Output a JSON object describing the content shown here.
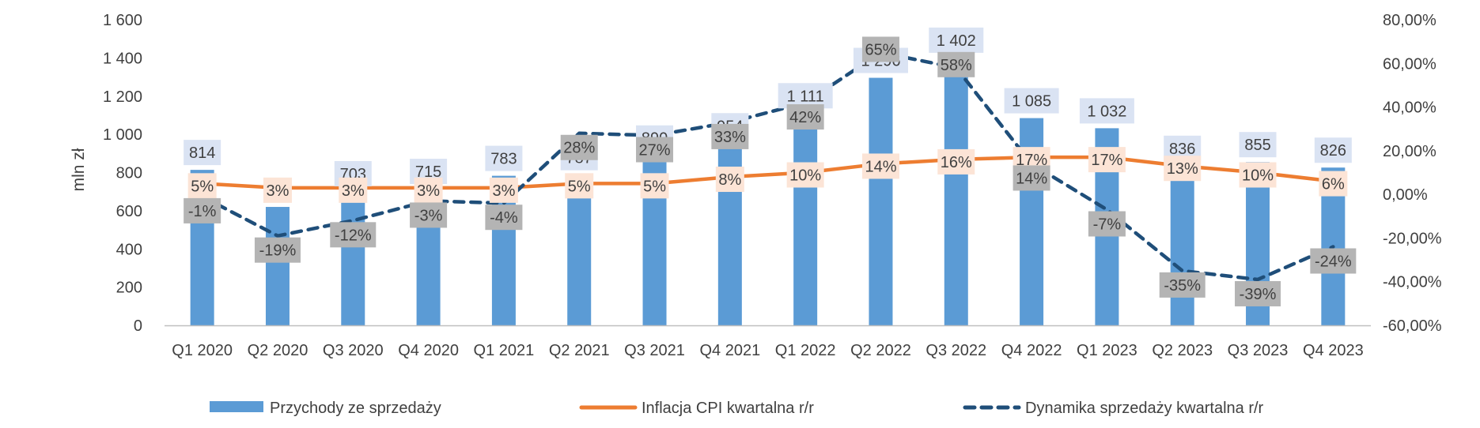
{
  "chart_data": {
    "type": "bar",
    "ylabel": "mln zł",
    "ylim": [
      0,
      1600
    ],
    "yticks": [
      "0",
      "200",
      "400",
      "600",
      "800",
      "1 000",
      "1 200",
      "1 400",
      "1 600"
    ],
    "y2lim": [
      -0.6,
      0.8
    ],
    "y2ticks": [
      "-60,00%",
      "-40,00%",
      "-20,00%",
      "0,00%",
      "20,00%",
      "40,00%",
      "60,00%",
      "80,00%"
    ],
    "legend_position": "bottom",
    "grid": false,
    "categories": [
      "Q1 2020",
      "Q2 2020",
      "Q3 2020",
      "Q4 2020",
      "Q1 2021",
      "Q2 2021",
      "Q3 2021",
      "Q4 2021",
      "Q1 2022",
      "Q2 2022",
      "Q3 2022",
      "Q4 2022",
      "Q1 2023",
      "Q2 2023",
      "Q3 2023",
      "Q4 2023"
    ],
    "series": [
      {
        "name": "Przychody ze sprzedaży",
        "type": "bar",
        "axis": "left",
        "color": "#5B9BD5",
        "values": [
          814,
          620,
          703,
          715,
          783,
          787,
          890,
          954,
          1111,
          1296,
          1402,
          1085,
          1032,
          836,
          855,
          826
        ],
        "labels": [
          "814",
          "",
          "703",
          "715",
          "783",
          "787",
          "890",
          "954",
          "1 111",
          "1 296",
          "1 402",
          "1 085",
          "1 032",
          "836",
          "855",
          "826"
        ]
      },
      {
        "name": "Inflacja CPI kwartalna r/r",
        "type": "line",
        "axis": "right",
        "color": "#ED7D31",
        "values": [
          0.05,
          0.03,
          0.03,
          0.03,
          0.03,
          0.05,
          0.05,
          0.08,
          0.1,
          0.14,
          0.16,
          0.17,
          0.17,
          0.13,
          0.1,
          0.06
        ],
        "labels": [
          "5%",
          "3%",
          "3%",
          "3%",
          "3%",
          "5%",
          "5%",
          "8%",
          "10%",
          "14%",
          "16%",
          "17%",
          "17%",
          "13%",
          "10%",
          "6%"
        ]
      },
      {
        "name": "Dynamika sprzedaży kwartalna r/r",
        "type": "line",
        "axis": "right",
        "color": "#1F4E79",
        "dashed": true,
        "values": [
          -0.01,
          -0.19,
          -0.12,
          -0.03,
          -0.04,
          0.28,
          0.27,
          0.33,
          0.42,
          0.65,
          0.58,
          0.14,
          -0.07,
          -0.35,
          -0.39,
          -0.24
        ],
        "labels": [
          "-1%",
          "-19%",
          "-12%",
          "-3%",
          "-4%",
          "28%",
          "27%",
          "33%",
          "42%",
          "65%",
          "58%",
          "14%",
          "-7%",
          "-35%",
          "-39%",
          "-24%"
        ]
      }
    ]
  }
}
